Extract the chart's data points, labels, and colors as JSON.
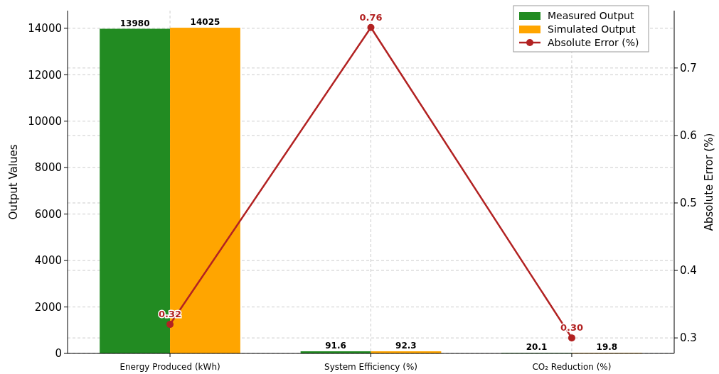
{
  "chart_data": {
    "type": "bar",
    "categories": [
      "Energy Produced (kWh)",
      "System Efficiency (%)",
      "CO₂ Reduction (%)"
    ],
    "series": [
      {
        "name": "Measured Output",
        "color": "#228b22",
        "values": [
          13980,
          91.6,
          20.1
        ]
      },
      {
        "name": "Simulated Output",
        "color": "#ffa500",
        "values": [
          14025,
          92.3,
          19.8
        ]
      },
      {
        "name": "Absolute Error (%)",
        "type": "line",
        "axis": "y2",
        "color": "#b22222",
        "values": [
          0.32,
          0.76,
          0.3
        ],
        "value_labels": [
          "0.32",
          "0.76",
          "0.30"
        ]
      }
    ],
    "ylabel": "Output Values",
    "y2label": "Absolute Error (%)",
    "ylim": [
      0,
      14760
    ],
    "yticks": [
      0,
      2000,
      4000,
      6000,
      8000,
      10000,
      12000,
      14000
    ],
    "y2lim": [
      0.277,
      0.785
    ],
    "y2ticks": [
      0.3,
      0.4,
      0.5,
      0.6,
      0.7
    ],
    "data_labels": true,
    "grid": true,
    "legend": "top right",
    "marker": "circle"
  }
}
